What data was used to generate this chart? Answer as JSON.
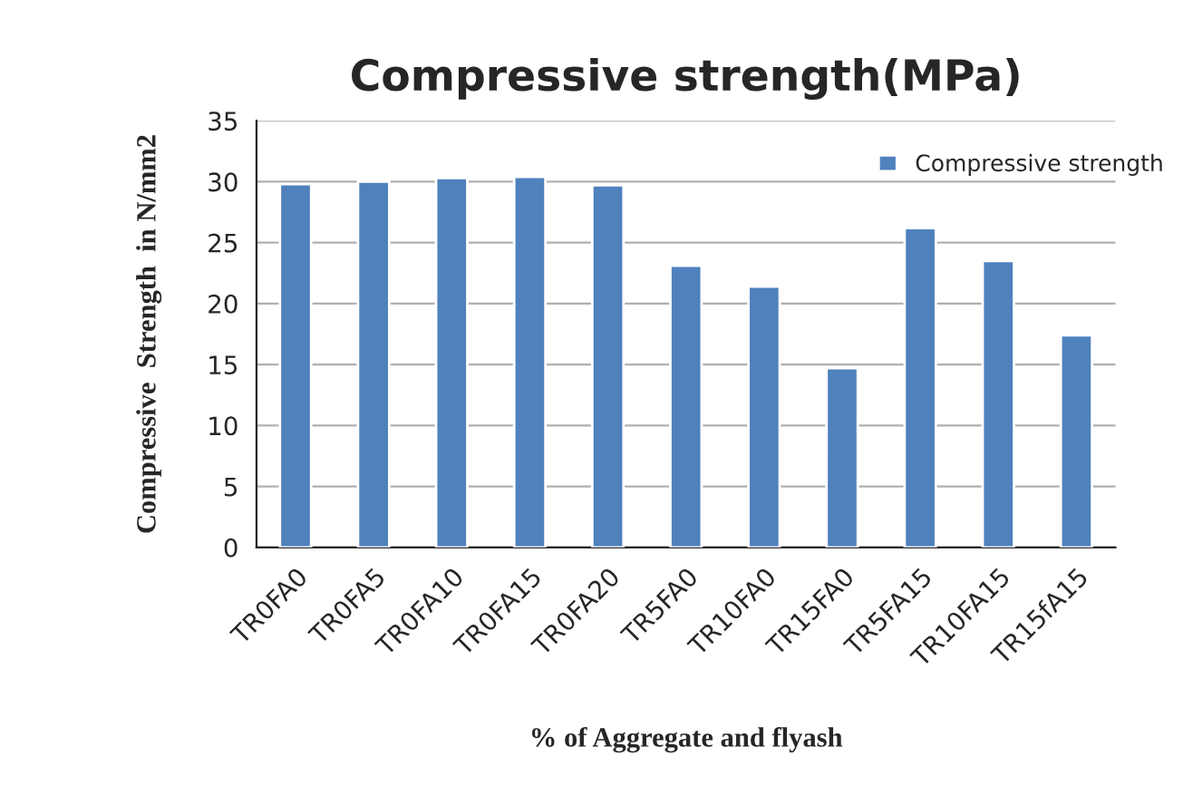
{
  "chart_data": {
    "type": "bar",
    "title": "Compressive strength(MPa)",
    "xlabel": "% of Aggregate and flyash",
    "ylabel": "Compressive  Strength  in N/mm2",
    "categories": [
      "TR0FA0",
      "TR0FA5",
      "TR0FA10",
      "TR0FA15",
      "TR0FA20",
      "TR5FA0",
      "TR10FA0",
      "TR15FA0",
      "TR5FA15",
      "TR10FA15",
      "TR15fA15"
    ],
    "series": [
      {
        "name": "Compressive strength",
        "color": "#4f81bd",
        "values": [
          29.8,
          30.0,
          30.3,
          30.4,
          29.7,
          23.1,
          21.4,
          14.7,
          26.2,
          23.5,
          17.4
        ]
      }
    ],
    "ylim": [
      0,
      35
    ],
    "yticks": [
      0,
      5,
      10,
      15,
      20,
      25,
      30,
      35
    ],
    "grid": "y",
    "legend": "top right"
  }
}
